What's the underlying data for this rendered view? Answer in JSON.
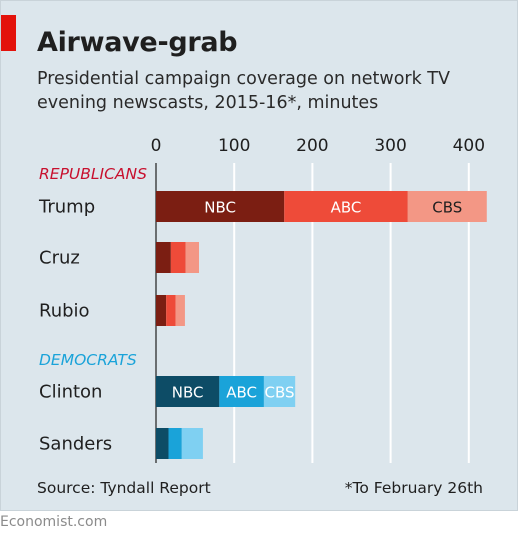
{
  "title": "Airwave-grab",
  "subtitle": "Presidential campaign coverage on network TV evening newscasts, 2015-16*, minutes",
  "source": "Source: Tyndall Report",
  "footnote": "*To February 26th",
  "brand": "Economist.com",
  "colors": {
    "republican": [
      "#7b1e12",
      "#ee4b39",
      "#f39785"
    ],
    "democrat": [
      "#0d4c66",
      "#1aa3d9",
      "#7fd0f2"
    ],
    "republican_label": "#c8102e",
    "democrat_label": "#1aa3d9",
    "background": "#dce6ec"
  },
  "chart_data": {
    "type": "bar",
    "orientation": "horizontal",
    "stacked": true,
    "xlim": [
      0,
      420
    ],
    "x_ticks": [
      0,
      100,
      200,
      300,
      400
    ],
    "grid": true,
    "stack_series": [
      "NBC",
      "ABC",
      "CBS"
    ],
    "groups": [
      {
        "label": "REPUBLICANS",
        "palette": "republican",
        "candidates": [
          {
            "name": "Trump",
            "values": [
              164,
              158,
              101
            ],
            "segment_labels": [
              "NBC",
              "ABC",
              "CBS"
            ]
          },
          {
            "name": "Cruz",
            "values": [
              19,
              19,
              17
            ]
          },
          {
            "name": "Rubio",
            "values": [
              13,
              12,
              12
            ]
          }
        ]
      },
      {
        "label": "DEMOCRATS",
        "palette": "democrat",
        "candidates": [
          {
            "name": "Clinton",
            "values": [
              81,
              57,
              40
            ],
            "segment_labels": [
              "NBC",
              "ABC",
              "CBS"
            ]
          },
          {
            "name": "Sanders",
            "values": [
              16,
              17,
              27
            ]
          }
        ]
      }
    ]
  }
}
